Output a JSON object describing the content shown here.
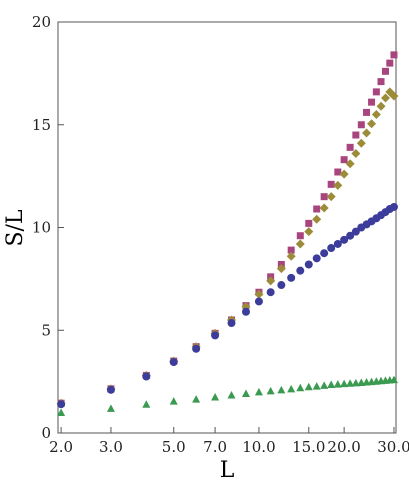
{
  "chart_data": {
    "type": "scatter",
    "xlabel": "L",
    "ylabel": "S/L",
    "x_scale": "log",
    "xlim": [
      1.95,
      30.5
    ],
    "ylim": [
      0,
      20
    ],
    "x_ticks": [
      2,
      3,
      5,
      7,
      10,
      15,
      20,
      30
    ],
    "x_tick_labels": [
      "2.0",
      "3.0",
      "5.0",
      "7.0",
      "10.0",
      "15.0",
      "20.0",
      "30.0"
    ],
    "y_ticks": [
      0,
      5,
      10,
      15,
      20
    ],
    "y_tick_labels": [
      "0",
      "5",
      "10",
      "15",
      "20"
    ],
    "grid": false,
    "legend": "none",
    "x": [
      2,
      3,
      4,
      5,
      6,
      7,
      8,
      9,
      10,
      11,
      12,
      13,
      14,
      15,
      16,
      17,
      18,
      19,
      20,
      21,
      22,
      23,
      24,
      25,
      26,
      27,
      28,
      29,
      30
    ],
    "series": [
      {
        "marker": "square",
        "color": "#a8457e",
        "values": [
          1.45,
          2.15,
          2.8,
          3.5,
          4.2,
          4.85,
          5.5,
          6.2,
          6.85,
          7.6,
          8.2,
          8.9,
          9.6,
          10.2,
          10.9,
          11.5,
          12.1,
          12.7,
          13.3,
          13.9,
          14.5,
          15.0,
          15.6,
          16.1,
          16.6,
          17.1,
          17.6,
          18.0,
          18.4
        ]
      },
      {
        "marker": "diamond",
        "color": "#9c8c3a",
        "values": [
          1.45,
          2.15,
          2.8,
          3.5,
          4.2,
          4.85,
          5.5,
          6.15,
          6.75,
          7.4,
          8.0,
          8.6,
          9.2,
          9.8,
          10.4,
          10.95,
          11.5,
          12.05,
          12.6,
          13.1,
          13.6,
          14.1,
          14.6,
          15.05,
          15.5,
          15.9,
          16.3,
          16.6,
          16.4
        ]
      },
      {
        "marker": "circle",
        "color": "#3c3d9a",
        "values": [
          1.4,
          2.1,
          2.75,
          3.45,
          4.1,
          4.75,
          5.35,
          5.9,
          6.4,
          6.85,
          7.2,
          7.55,
          7.9,
          8.2,
          8.5,
          8.75,
          9.0,
          9.2,
          9.4,
          9.6,
          9.8,
          10.0,
          10.15,
          10.3,
          10.45,
          10.6,
          10.75,
          10.9,
          11.0
        ]
      },
      {
        "marker": "triangle",
        "color": "#3a9a4f",
        "values": [
          1.0,
          1.2,
          1.4,
          1.55,
          1.65,
          1.75,
          1.85,
          1.92,
          2.0,
          2.05,
          2.1,
          2.15,
          2.2,
          2.25,
          2.28,
          2.32,
          2.36,
          2.38,
          2.4,
          2.42,
          2.44,
          2.46,
          2.48,
          2.5,
          2.52,
          2.54,
          2.56,
          2.58,
          2.6
        ]
      }
    ]
  }
}
